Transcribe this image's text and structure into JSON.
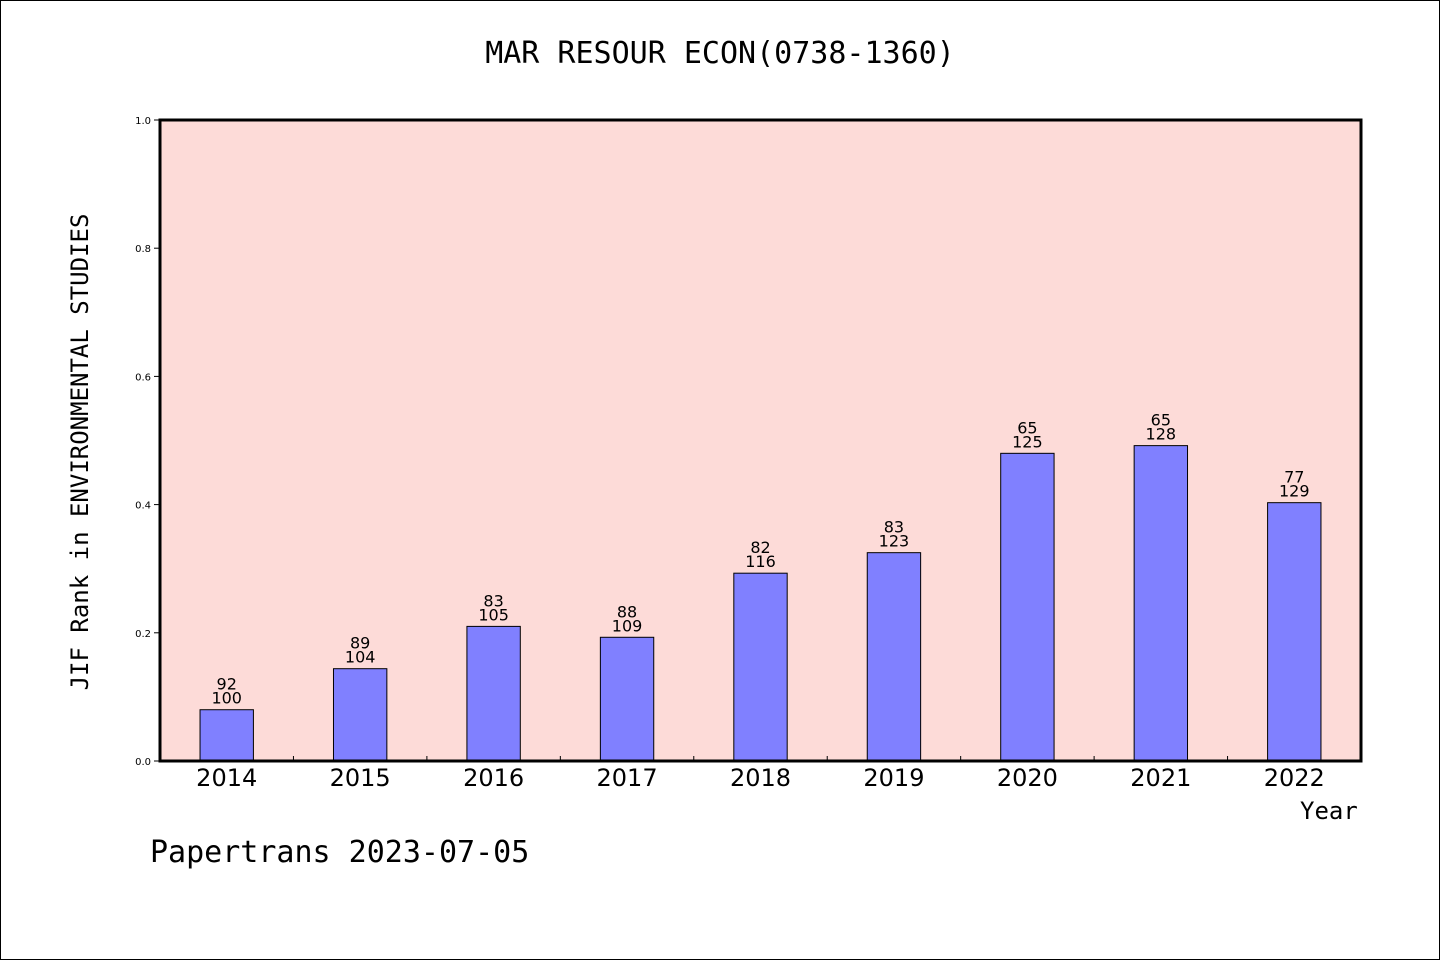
{
  "chart_data": {
    "type": "bar",
    "title": "MAR RESOUR ECON(0738-1360)",
    "xlabel": "Year",
    "ylabel": "JIF Rank in ENVIRONMENTAL STUDIES",
    "ylim": [
      0,
      1.0
    ],
    "yticks": [
      "0.0",
      "0.2",
      "0.4",
      "0.6",
      "0.8",
      "1.0"
    ],
    "categories": [
      "2014",
      "2015",
      "2016",
      "2017",
      "2018",
      "2019",
      "2020",
      "2021",
      "2022"
    ],
    "values": [
      0.08,
      0.144,
      0.21,
      0.193,
      0.293,
      0.325,
      0.48,
      0.492,
      0.403
    ],
    "ranks": [
      "92",
      "89",
      "83",
      "88",
      "82",
      "83",
      "65",
      "65",
      "77"
    ],
    "totals": [
      "100",
      "104",
      "105",
      "109",
      "116",
      "123",
      "125",
      "128",
      "129"
    ],
    "grid": false,
    "colors": {
      "plot_bg": "#fddbd8",
      "bar": "#8080ff",
      "bar_edge": "#000000"
    }
  },
  "footer": "Papertrans 2023-07-05"
}
